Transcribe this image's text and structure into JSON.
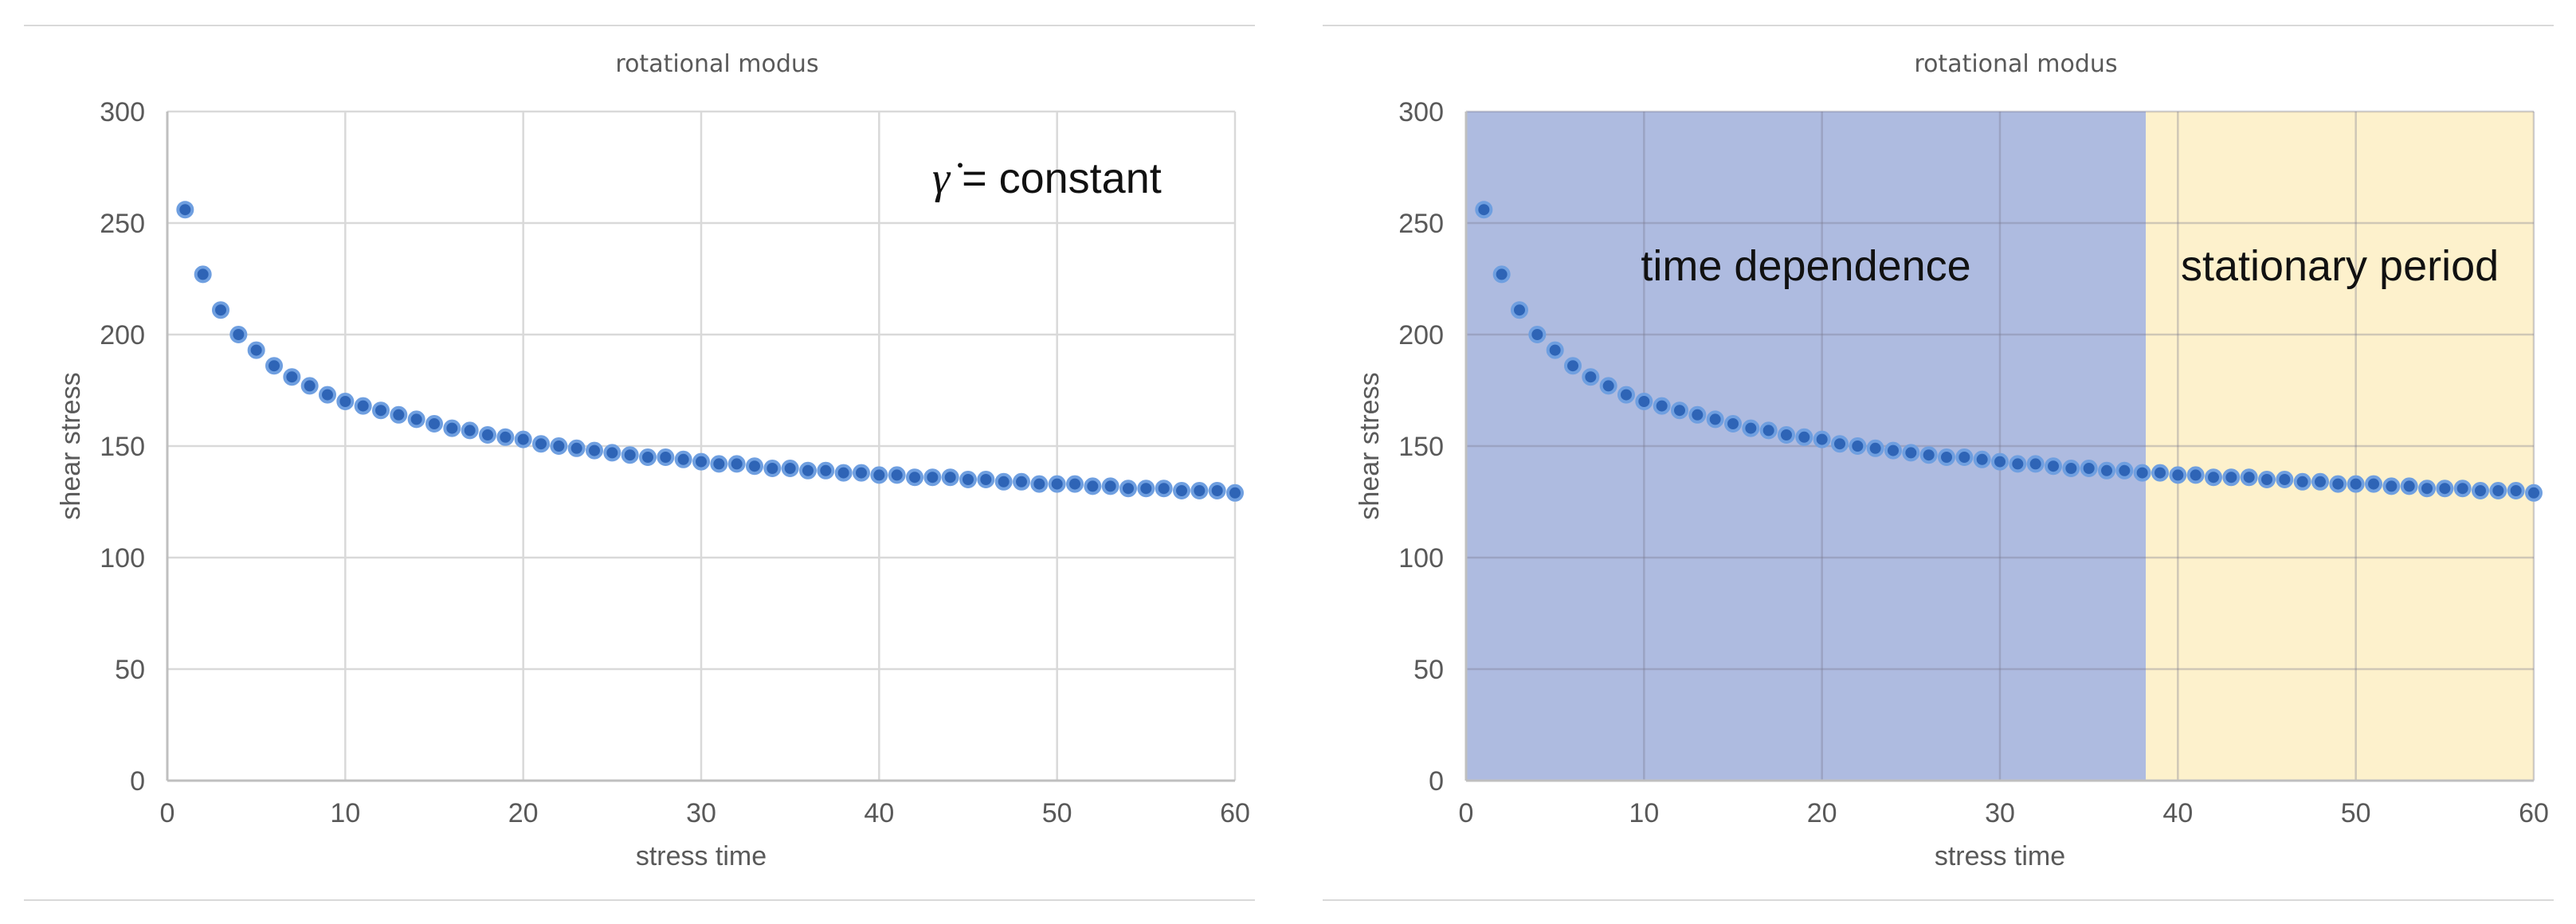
{
  "colors": {
    "marker_fill": "#2E64B6",
    "marker_stroke": "#6F9FE0",
    "grid": "#D9D9D9",
    "axis": "#BFBFBF",
    "text": "#595959",
    "region_time_dependence": "#AEBBE0",
    "region_stationary": "#FDF1CC",
    "frame": "#D9D9D9"
  },
  "chart_data": [
    {
      "type": "scatter",
      "title": "rotational modus",
      "xlabel": "stress time",
      "ylabel": "shear stress",
      "xlim": [
        0,
        60
      ],
      "ylim": [
        0,
        300
      ],
      "xticks": [
        "0",
        "10",
        "20",
        "30",
        "40",
        "50",
        "60"
      ],
      "yticks": [
        "0",
        "50",
        "100",
        "150",
        "200",
        "250",
        "300"
      ],
      "grid": true,
      "annotation": {
        "symbol": "γ̇",
        "text": " = constant"
      },
      "x": [
        1,
        2,
        3,
        4,
        5,
        6,
        7,
        8,
        9,
        10,
        11,
        12,
        13,
        14,
        15,
        16,
        17,
        18,
        19,
        20,
        21,
        22,
        23,
        24,
        25,
        26,
        27,
        28,
        29,
        30,
        31,
        32,
        33,
        34,
        35,
        36,
        37,
        38,
        39,
        40,
        41,
        42,
        43,
        44,
        45,
        46,
        47,
        48,
        49,
        50,
        51,
        52,
        53,
        54,
        55,
        56,
        57,
        58,
        59,
        60
      ],
      "y": [
        256,
        227,
        211,
        200,
        193,
        186,
        181,
        177,
        173,
        170,
        168,
        166,
        164,
        162,
        160,
        158,
        157,
        155,
        154,
        153,
        151,
        150,
        149,
        148,
        147,
        146,
        145,
        145,
        144,
        143,
        142,
        142,
        141,
        140,
        140,
        139,
        139,
        138,
        138,
        137,
        137,
        136,
        136,
        136,
        135,
        135,
        134,
        134,
        133,
        133,
        133,
        132,
        132,
        131,
        131,
        131,
        130,
        130,
        130,
        129
      ]
    },
    {
      "type": "scatter",
      "title": "rotational modus",
      "xlabel": "stress time",
      "ylabel": "shear stress",
      "xlim": [
        0,
        60
      ],
      "ylim": [
        0,
        300
      ],
      "xticks": [
        "0",
        "10",
        "20",
        "30",
        "40",
        "50",
        "60"
      ],
      "yticks": [
        "0",
        "50",
        "100",
        "150",
        "200",
        "250",
        "300"
      ],
      "grid": true,
      "regions": [
        {
          "label": "time dependence",
          "x_start": 0,
          "x_end": 38.2
        },
        {
          "label": "stationary period",
          "x_start": 38.2,
          "x_end": 60
        }
      ],
      "x": [
        1,
        2,
        3,
        4,
        5,
        6,
        7,
        8,
        9,
        10,
        11,
        12,
        13,
        14,
        15,
        16,
        17,
        18,
        19,
        20,
        21,
        22,
        23,
        24,
        25,
        26,
        27,
        28,
        29,
        30,
        31,
        32,
        33,
        34,
        35,
        36,
        37,
        38,
        39,
        40,
        41,
        42,
        43,
        44,
        45,
        46,
        47,
        48,
        49,
        50,
        51,
        52,
        53,
        54,
        55,
        56,
        57,
        58,
        59,
        60
      ],
      "y": [
        256,
        227,
        211,
        200,
        193,
        186,
        181,
        177,
        173,
        170,
        168,
        166,
        164,
        162,
        160,
        158,
        157,
        155,
        154,
        153,
        151,
        150,
        149,
        148,
        147,
        146,
        145,
        145,
        144,
        143,
        142,
        142,
        141,
        140,
        140,
        139,
        139,
        138,
        138,
        137,
        137,
        136,
        136,
        136,
        135,
        135,
        134,
        134,
        133,
        133,
        133,
        132,
        132,
        131,
        131,
        131,
        130,
        130,
        130,
        129
      ]
    }
  ]
}
